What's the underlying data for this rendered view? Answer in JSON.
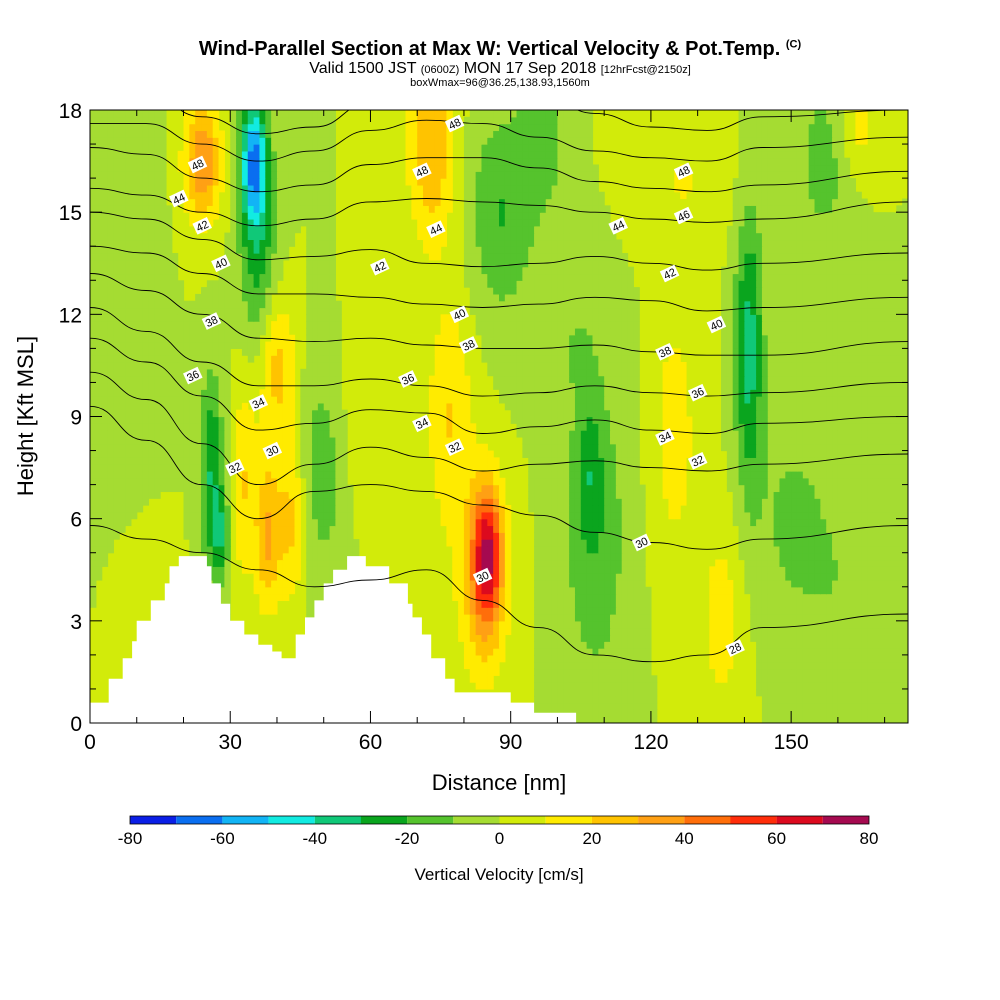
{
  "header": {
    "title": "Wind-Parallel Section at Max W: Vertical Velocity & Pot.Temp.",
    "title_mark": "(C)",
    "sub_a": "Valid 1500 JST",
    "sub_b": "(0600Z)",
    "sub_c": "MON 17 Sep 2018",
    "sub_d": "[12hrFcst@2150z]",
    "sub2": "boxWmax=96@36.25,138.93,1560m"
  },
  "chart_data": {
    "type": "heatmap",
    "xlabel": "Distance [nm]",
    "ylabel": "Height [Kft MSL]",
    "xlim": [
      0,
      175
    ],
    "ylim": [
      0,
      18
    ],
    "xticks": [
      0,
      30,
      60,
      90,
      120,
      150
    ],
    "yticks": [
      0,
      3,
      6,
      9,
      12,
      15,
      18
    ],
    "colorbar": {
      "label": "Vertical Velocity [cm/s]",
      "ticks": [
        -80,
        -60,
        -40,
        -20,
        0,
        20,
        40,
        60,
        80
      ],
      "colors": [
        "#0a1ee6",
        "#0a6ef0",
        "#12b4f5",
        "#12ebe1",
        "#10c878",
        "#0aa51e",
        "#55c32d",
        "#a5dc32",
        "#d2eb0a",
        "#ffeb00",
        "#ffc300",
        "#ffa014",
        "#ff6e0a",
        "#ff2d0a",
        "#dc0a1e",
        "#a50a50",
        "#6e0a82"
      ],
      "bounds": [
        -80,
        -70,
        -60,
        -50,
        -40,
        -30,
        -20,
        -10,
        0,
        10,
        20,
        30,
        40,
        50,
        60,
        70,
        80
      ]
    },
    "base_color": "#d2eb0a",
    "blobs": [
      {
        "x": 43,
        "z": 6.0,
        "sx": 3.2,
        "sz": 2.5,
        "w": 25
      },
      {
        "x": 77,
        "z": 9.0,
        "sx": 5.0,
        "sz": 3.5,
        "w": 20
      },
      {
        "x": 85,
        "z": 5.0,
        "sx": 3.2,
        "sz": 2.0,
        "w": 55
      },
      {
        "x": 84,
        "z": 4.0,
        "sx": 5.5,
        "sz": 3.0,
        "w": 25
      },
      {
        "x": 50,
        "z": 7.5,
        "sx": 6.0,
        "sz": 3.0,
        "w": -18
      },
      {
        "x": 57,
        "z": 8.5,
        "sx": 6.0,
        "sz": 2.8,
        "w": 10
      },
      {
        "x": 24,
        "z": 16.5,
        "sx": 4.0,
        "sz": 1.8,
        "w": 40
      },
      {
        "x": 35,
        "z": 16.5,
        "sx": 2.8,
        "sz": 1.8,
        "w": -55
      },
      {
        "x": 36,
        "z": 14.0,
        "sx": 4.0,
        "sz": 3.2,
        "w": -25
      },
      {
        "x": 26,
        "z": 7.5,
        "sx": 2.5,
        "sz": 2.8,
        "w": -30
      },
      {
        "x": 28,
        "z": 5.5,
        "sx": 2.0,
        "sz": 1.3,
        "w": -25
      },
      {
        "x": 33,
        "z": 7.0,
        "sx": 3.0,
        "sz": 3.0,
        "w": 20
      },
      {
        "x": 38,
        "z": 5.5,
        "sx": 2.5,
        "sz": 2.2,
        "w": 30
      },
      {
        "x": 40,
        "z": 10.5,
        "sx": 4.0,
        "sz": 2.2,
        "w": 25
      },
      {
        "x": 73,
        "z": 17.0,
        "sx": 5.0,
        "sz": 3.0,
        "w": 30
      },
      {
        "x": 88,
        "z": 15.0,
        "sx": 7.0,
        "sz": 3.0,
        "w": -20
      },
      {
        "x": 97,
        "z": 17.0,
        "sx": 5.0,
        "sz": 2.0,
        "w": -15
      },
      {
        "x": 103,
        "z": 11.5,
        "sx": 8.0,
        "sz": 2.5,
        "w": -8
      },
      {
        "x": 108,
        "z": 5.5,
        "sx": 7.0,
        "sz": 4.5,
        "w": -18
      },
      {
        "x": 107,
        "z": 7.5,
        "sx": 2.5,
        "sz": 2.0,
        "w": -15
      },
      {
        "x": 127,
        "z": 16.0,
        "sx": 10.0,
        "sz": 2.0,
        "w": 10
      },
      {
        "x": 125,
        "z": 8.5,
        "sx": 5.0,
        "sz": 4.0,
        "w": 15
      },
      {
        "x": 141,
        "z": 11.0,
        "sx": 3.0,
        "sz": 4.0,
        "w": -35
      },
      {
        "x": 135,
        "z": 3.0,
        "sx": 4.5,
        "sz": 3.0,
        "w": 15
      },
      {
        "x": 150,
        "z": 6.0,
        "sx": 8.0,
        "sz": 3.0,
        "w": -12
      },
      {
        "x": 160,
        "z": 4.0,
        "sx": 8.0,
        "sz": 3.0,
        "w": -8
      },
      {
        "x": 157,
        "z": 16.5,
        "sx": 6.0,
        "sz": 2.5,
        "w": -15
      },
      {
        "x": 164,
        "z": 17.5,
        "sx": 4.0,
        "sz": 1.5,
        "w": 15
      },
      {
        "x": 8,
        "z": 13.0,
        "sx": 6.0,
        "sz": 5.0,
        "w": -10
      },
      {
        "x": 12,
        "z": 3.5,
        "sx": 5.0,
        "sz": 2.0,
        "w": 10
      }
    ],
    "terrain": [
      [
        0,
        0.6
      ],
      [
        4,
        0.6
      ],
      [
        4,
        1.3
      ],
      [
        7,
        1.3
      ],
      [
        7,
        1.9
      ],
      [
        9,
        1.9
      ],
      [
        9,
        2.4
      ],
      [
        10,
        2.4
      ],
      [
        10,
        3.0
      ],
      [
        13,
        3.0
      ],
      [
        13,
        3.6
      ],
      [
        16,
        3.6
      ],
      [
        16,
        4.1
      ],
      [
        17,
        4.1
      ],
      [
        17,
        4.6
      ],
      [
        19,
        4.6
      ],
      [
        19,
        4.9
      ],
      [
        25,
        4.9
      ],
      [
        25,
        4.6
      ],
      [
        26,
        4.6
      ],
      [
        26,
        4.1
      ],
      [
        28,
        4.1
      ],
      [
        28,
        3.5
      ],
      [
        30,
        3.5
      ],
      [
        30,
        3.0
      ],
      [
        33,
        3.0
      ],
      [
        33,
        2.6
      ],
      [
        36,
        2.6
      ],
      [
        36,
        2.3
      ],
      [
        39,
        2.3
      ],
      [
        39,
        2.1
      ],
      [
        41,
        2.1
      ],
      [
        41,
        1.9
      ],
      [
        44,
        1.9
      ],
      [
        44,
        2.6
      ],
      [
        46,
        2.6
      ],
      [
        46,
        3.1
      ],
      [
        48,
        3.1
      ],
      [
        48,
        3.6
      ],
      [
        50,
        3.6
      ],
      [
        50,
        4.1
      ],
      [
        52,
        4.1
      ],
      [
        52,
        4.5
      ],
      [
        55,
        4.5
      ],
      [
        55,
        4.9
      ],
      [
        59,
        4.9
      ],
      [
        59,
        4.6
      ],
      [
        64,
        4.6
      ],
      [
        64,
        4.1
      ],
      [
        68,
        4.1
      ],
      [
        68,
        3.5
      ],
      [
        69,
        3.5
      ],
      [
        69,
        3.1
      ],
      [
        71,
        3.1
      ],
      [
        71,
        2.6
      ],
      [
        73,
        2.6
      ],
      [
        73,
        1.9
      ],
      [
        76,
        1.9
      ],
      [
        76,
        1.3
      ],
      [
        78,
        1.3
      ],
      [
        78,
        0.9
      ],
      [
        90,
        0.9
      ],
      [
        90,
        0.6
      ],
      [
        95,
        0.6
      ],
      [
        95,
        0.3
      ],
      [
        104,
        0.3
      ],
      [
        104,
        0
      ],
      [
        0,
        0
      ]
    ],
    "contours": [
      {
        "label": "48",
        "values": [
          18.5,
          18.5,
          17.8,
          17.3,
          17.5,
          18.2,
          18.5,
          18.5,
          18.5,
          17.9,
          17.5,
          17.4,
          17.8,
          18.0
        ]
      },
      {
        "label": "48",
        "values": [
          17.6,
          17.6,
          17.0,
          16.5,
          16.8,
          17.4,
          17.7,
          17.6,
          17.2,
          16.8,
          16.6,
          16.5,
          16.9,
          17.2
        ]
      },
      {
        "label": "46",
        "values": [
          16.9,
          16.7,
          16.0,
          15.6,
          15.8,
          16.4,
          16.6,
          16.6,
          16.3,
          15.9,
          15.7,
          15.6,
          15.8,
          16.2
        ]
      },
      {
        "label": "44",
        "values": [
          15.7,
          15.5,
          15.0,
          14.6,
          14.8,
          15.3,
          15.4,
          15.3,
          15.2,
          15.0,
          14.8,
          14.7,
          14.8,
          15.3
        ]
      },
      {
        "label": "42",
        "values": [
          15.0,
          14.8,
          14.2,
          13.6,
          13.7,
          13.9,
          13.5,
          13.4,
          13.5,
          13.7,
          13.5,
          13.3,
          13.5,
          13.8
        ]
      },
      {
        "label": "40",
        "values": [
          14.0,
          13.8,
          13.2,
          12.6,
          12.6,
          12.5,
          12.3,
          12.2,
          12.3,
          12.5,
          12.4,
          12.1,
          12.2,
          12.5
        ]
      },
      {
        "label": "38",
        "values": [
          13.2,
          12.7,
          12.0,
          11.3,
          11.2,
          11.3,
          11.1,
          11.0,
          11.0,
          11.1,
          10.9,
          10.8,
          10.8,
          11.2
        ]
      },
      {
        "label": "36",
        "values": [
          12.2,
          11.5,
          10.6,
          9.9,
          9.9,
          10.1,
          9.9,
          9.6,
          9.7,
          9.9,
          9.7,
          9.6,
          9.7,
          10.0
        ]
      },
      {
        "label": "34",
        "values": [
          11.3,
          10.6,
          9.6,
          8.6,
          8.8,
          9.2,
          9.1,
          8.5,
          8.7,
          8.9,
          8.6,
          8.5,
          8.8,
          9.0
        ]
      },
      {
        "label": "32",
        "values": [
          10.3,
          9.5,
          8.2,
          7.0,
          7.6,
          8.1,
          7.8,
          7.4,
          7.6,
          7.7,
          7.5,
          7.4,
          7.6,
          7.9
        ]
      },
      {
        "label": "30",
        "values": [
          9.3,
          8.3,
          7.0,
          6.0,
          6.8,
          7.0,
          6.8,
          6.4,
          6.1,
          5.6,
          5.3,
          5.1,
          5.4,
          5.8
        ]
      },
      {
        "label": "28",
        "values": [
          5.8,
          5.4,
          5.0,
          4.5,
          4.0,
          4.2,
          4.5,
          3.6,
          2.8,
          2.0,
          1.8,
          2.0,
          2.8,
          3.2
        ]
      }
    ],
    "contour_labels": [
      {
        "text": "48",
        "x": 23,
        "z": 16.4
      },
      {
        "text": "44",
        "x": 19,
        "z": 15.4
      },
      {
        "text": "42",
        "x": 24,
        "z": 14.6
      },
      {
        "text": "40",
        "x": 28,
        "z": 13.5
      },
      {
        "text": "38",
        "x": 26,
        "z": 11.8
      },
      {
        "text": "36",
        "x": 22,
        "z": 10.2
      },
      {
        "text": "34",
        "x": 36,
        "z": 9.4
      },
      {
        "text": "32",
        "x": 31,
        "z": 7.5
      },
      {
        "text": "30",
        "x": 39,
        "z": 8.0
      },
      {
        "text": "48",
        "x": 78,
        "z": 17.6
      },
      {
        "text": "48",
        "x": 71,
        "z": 16.2
      },
      {
        "text": "44",
        "x": 74,
        "z": 14.5
      },
      {
        "text": "42",
        "x": 62,
        "z": 13.4
      },
      {
        "text": "40",
        "x": 79,
        "z": 12.0
      },
      {
        "text": "38",
        "x": 81,
        "z": 11.1
      },
      {
        "text": "36",
        "x": 68,
        "z": 10.1
      },
      {
        "text": "34",
        "x": 71,
        "z": 8.8
      },
      {
        "text": "32",
        "x": 78,
        "z": 8.1
      },
      {
        "text": "30",
        "x": 84,
        "z": 4.3
      },
      {
        "text": "48",
        "x": 127,
        "z": 16.2
      },
      {
        "text": "46",
        "x": 127,
        "z": 14.9
      },
      {
        "text": "44",
        "x": 113,
        "z": 14.6
      },
      {
        "text": "42",
        "x": 124,
        "z": 13.2
      },
      {
        "text": "40",
        "x": 134,
        "z": 11.7
      },
      {
        "text": "38",
        "x": 123,
        "z": 10.9
      },
      {
        "text": "36",
        "x": 130,
        "z": 9.7
      },
      {
        "text": "34",
        "x": 123,
        "z": 8.4
      },
      {
        "text": "32",
        "x": 130,
        "z": 7.7
      },
      {
        "text": "30",
        "x": 118,
        "z": 5.3
      },
      {
        "text": "28",
        "x": 138,
        "z": 2.2
      }
    ]
  }
}
